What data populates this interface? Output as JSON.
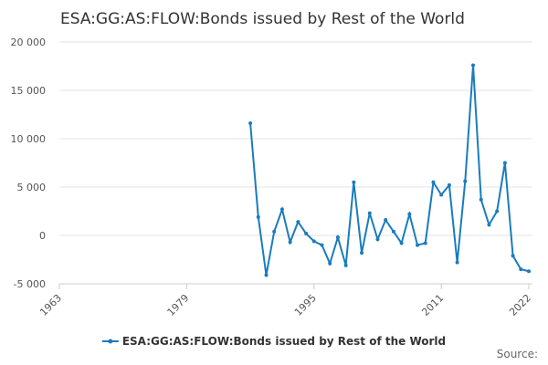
{
  "chart_data": {
    "type": "line",
    "title": "ESA:GG:AS:FLOW:Bonds issued by Rest of the World",
    "x": [
      1987,
      1988,
      1989,
      1990,
      1991,
      1992,
      1993,
      1994,
      1995,
      1996,
      1997,
      1998,
      1999,
      2000,
      2001,
      2002,
      2003,
      2004,
      2005,
      2006,
      2007,
      2008,
      2009,
      2010,
      2011,
      2012,
      2013,
      2014,
      2015,
      2016,
      2017,
      2018,
      2019,
      2020,
      2021,
      2022
    ],
    "series": [
      {
        "name": "ESA:GG:AS:FLOW:Bonds issued by Rest of the World",
        "color": "#1a7cbd",
        "values": [
          11600,
          1900,
          -4100,
          400,
          2700,
          -700,
          1400,
          200,
          -600,
          -1000,
          -2900,
          -200,
          -3100,
          5500,
          -1800,
          2300,
          -400,
          1600,
          400,
          -800,
          2200,
          -1000,
          -800,
          5500,
          4200,
          5200,
          -2800,
          5600,
          17600,
          3700,
          1100,
          2500,
          7500,
          -2100,
          -3500,
          -3700
        ]
      }
    ],
    "xlim": [
      1963,
      2022
    ],
    "xticks": [
      1963,
      1979,
      1995,
      2011,
      2022
    ],
    "ylim": [
      -5000,
      20000
    ],
    "yticks": [
      {
        "value": -5000,
        "label": "-5 000"
      },
      0,
      {
        "value": 5000,
        "label": "5 000"
      },
      {
        "value": 10000,
        "label": "10 000"
      },
      {
        "value": 15000,
        "label": "15 000"
      },
      {
        "value": 20000,
        "label": "20 000"
      }
    ],
    "grid": true,
    "legend": "bottom",
    "source": "Source:"
  }
}
